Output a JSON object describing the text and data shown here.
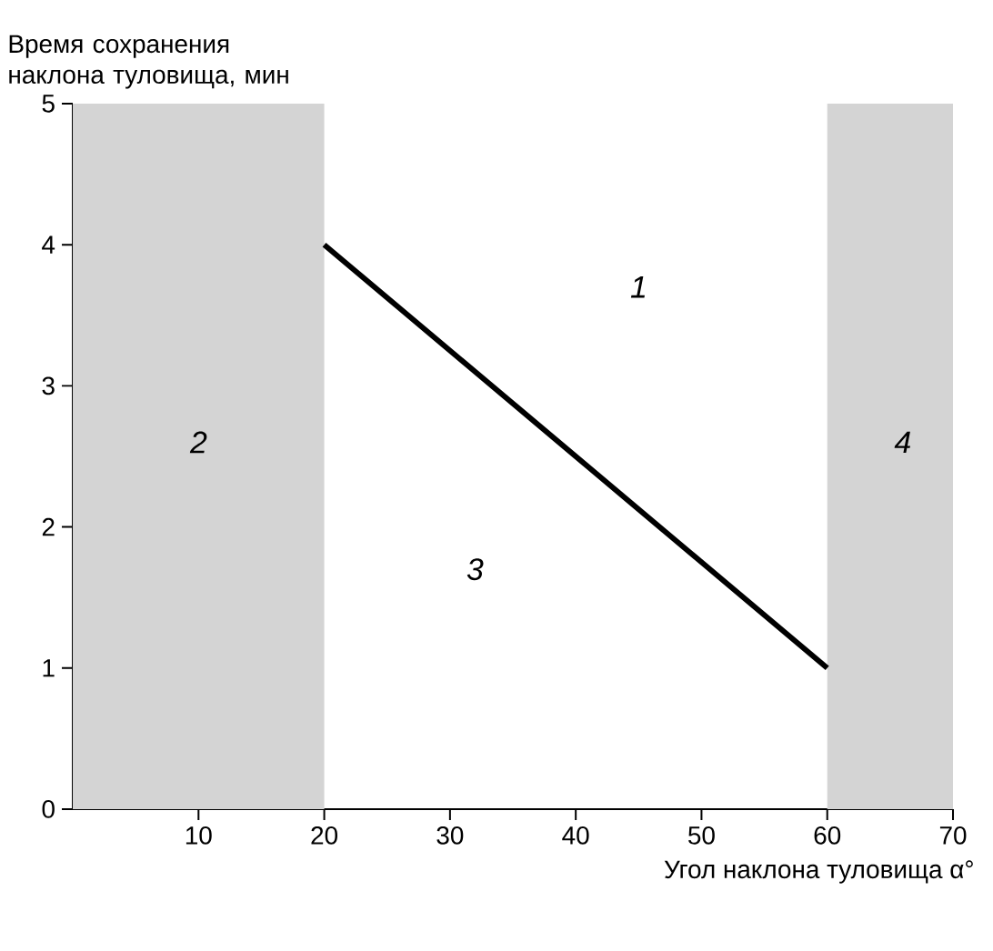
{
  "chart_data": {
    "type": "line",
    "ylabel": "Время сохранения наклона туловища, мин",
    "xlabel": "Угол наклона туловища α°",
    "x": [
      20,
      60
    ],
    "values": [
      4,
      1
    ],
    "color": "#000000",
    "xlim": [
      0,
      70
    ],
    "xticks": [
      10,
      20,
      30,
      40,
      50,
      60,
      70
    ],
    "ylim": [
      0,
      5
    ],
    "yticks": [
      0,
      1,
      2,
      3,
      4,
      5
    ],
    "bands": [
      {
        "axis": "x",
        "from": 0,
        "to": 20,
        "color": "#d4d4d4"
      },
      {
        "axis": "x",
        "from": 60,
        "to": 70,
        "color": "#d4d4d4"
      }
    ],
    "annotations": [
      "1",
      "2",
      "3",
      "4"
    ],
    "grid": false
  }
}
